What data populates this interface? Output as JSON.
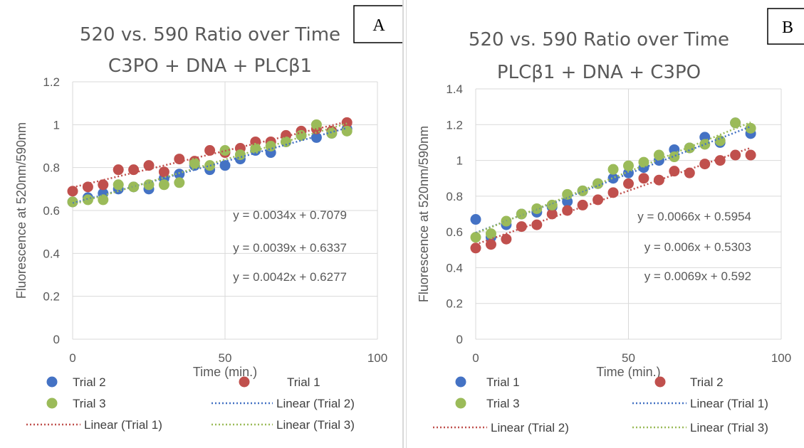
{
  "chart_data": [
    {
      "id": "A",
      "type": "scatter",
      "badge": "A",
      "title": "520 vs. 590 Ratio over Time",
      "subtitle": "C3PO + DNA + PLCβ1",
      "xlabel": "Time (min.)",
      "ylabel": "Fluorescence at 520nm/590nm",
      "xlim": [
        0,
        100
      ],
      "ylim": [
        0,
        1.2
      ],
      "xticks": [
        0,
        50,
        100
      ],
      "yticks": [
        0,
        0.2,
        0.4,
        0.6,
        0.8,
        1,
        1.2
      ],
      "ytick_labels": [
        "0",
        "0.2",
        "0.4",
        "0.6",
        "0.8",
        "1",
        "1.2"
      ],
      "grid": true,
      "series": [
        {
          "name": "Trial 2",
          "color": "#4472c4",
          "x": [
            0,
            5,
            10,
            15,
            20,
            25,
            30,
            35,
            40,
            45,
            50,
            55,
            60,
            65,
            70,
            75,
            80,
            85,
            90
          ],
          "y": [
            0.64,
            0.66,
            0.68,
            0.7,
            0.71,
            0.7,
            0.75,
            0.77,
            0.81,
            0.79,
            0.81,
            0.84,
            0.88,
            0.87,
            0.92,
            0.95,
            0.94,
            0.96,
            0.98
          ]
        },
        {
          "name": "Trial 1",
          "color": "#c0504d",
          "x": [
            0,
            5,
            10,
            15,
            20,
            25,
            30,
            35,
            40,
            45,
            50,
            55,
            60,
            65,
            70,
            75,
            80,
            85,
            90
          ],
          "y": [
            0.69,
            0.71,
            0.72,
            0.79,
            0.79,
            0.81,
            0.78,
            0.84,
            0.83,
            0.88,
            0.87,
            0.89,
            0.92,
            0.92,
            0.95,
            0.97,
            0.98,
            0.97,
            1.01
          ]
        },
        {
          "name": "Trial 3",
          "color": "#9bbb59",
          "x": [
            0,
            5,
            10,
            15,
            20,
            25,
            30,
            35,
            40,
            45,
            50,
            55,
            60,
            65,
            70,
            75,
            80,
            85,
            90
          ],
          "y": [
            0.64,
            0.65,
            0.65,
            0.72,
            0.71,
            0.72,
            0.72,
            0.73,
            0.82,
            0.81,
            0.88,
            0.86,
            0.89,
            0.9,
            0.92,
            0.95,
            1.0,
            0.96,
            0.97
          ]
        }
      ],
      "trendlines": [
        {
          "name": "Linear (Trial 2)",
          "color": "#4472c4",
          "slope": 0.0039,
          "intercept": 0.6337
        },
        {
          "name": "Linear (Trial 1)",
          "color": "#c0504d",
          "slope": 0.0034,
          "intercept": 0.7079
        },
        {
          "name": "Linear (Trial 3)",
          "color": "#9bbb59",
          "slope": 0.0042,
          "intercept": 0.6277
        }
      ],
      "equations": [
        "y = 0.0034x + 0.7079",
        "y = 0.0039x + 0.6337",
        "y = 0.0042x + 0.6277"
      ],
      "legend": [
        "Trial 2",
        "Trial 1",
        "Trial 3",
        "Linear (Trial 2)",
        "Linear (Trial 1)",
        "Linear (Trial 3)"
      ]
    },
    {
      "id": "B",
      "type": "scatter",
      "badge": "B",
      "title": "520 vs. 590 Ratio over Time",
      "subtitle": "PLCβ1 + DNA + C3PO",
      "xlabel": "Time (min.)",
      "ylabel": "Fluorescence at 520nm/590nm",
      "xlim": [
        0,
        100
      ],
      "ylim": [
        0,
        1.4
      ],
      "xticks": [
        0,
        50,
        100
      ],
      "yticks": [
        0,
        0.2,
        0.4,
        0.6,
        0.8,
        1,
        1.2,
        1.4
      ],
      "ytick_labels": [
        "0",
        "0.2",
        "0.4",
        "0.6",
        "0.8",
        "1",
        "1.2",
        "1.4"
      ],
      "grid": true,
      "series": [
        {
          "name": "Trial 1",
          "color": "#4472c4",
          "x": [
            0,
            5,
            10,
            15,
            20,
            25,
            30,
            35,
            40,
            45,
            50,
            55,
            60,
            65,
            70,
            75,
            80,
            85,
            90
          ],
          "y": [
            0.67,
            0.57,
            0.64,
            0.7,
            0.71,
            0.74,
            0.77,
            0.83,
            0.87,
            0.9,
            0.93,
            0.96,
            1.0,
            1.06,
            1.07,
            1.13,
            1.1,
            1.21,
            1.15
          ]
        },
        {
          "name": "Trial 2",
          "color": "#c0504d",
          "x": [
            0,
            5,
            10,
            15,
            20,
            25,
            30,
            35,
            40,
            45,
            50,
            55,
            60,
            65,
            70,
            75,
            80,
            85,
            90
          ],
          "y": [
            0.51,
            0.53,
            0.56,
            0.63,
            0.64,
            0.7,
            0.72,
            0.75,
            0.78,
            0.82,
            0.87,
            0.9,
            0.89,
            0.94,
            0.93,
            0.98,
            1.0,
            1.03,
            1.03
          ]
        },
        {
          "name": "Trial 3",
          "color": "#9bbb59",
          "x": [
            0,
            5,
            10,
            15,
            20,
            25,
            30,
            35,
            40,
            45,
            50,
            55,
            60,
            65,
            70,
            75,
            80,
            85,
            90
          ],
          "y": [
            0.57,
            0.59,
            0.66,
            0.7,
            0.73,
            0.75,
            0.81,
            0.83,
            0.87,
            0.95,
            0.97,
            0.99,
            1.03,
            1.02,
            1.07,
            1.09,
            1.11,
            1.21,
            1.18
          ]
        }
      ],
      "trendlines": [
        {
          "name": "Linear (Trial 1)",
          "color": "#4472c4",
          "slope": 0.0066,
          "intercept": 0.5954
        },
        {
          "name": "Linear (Trial 2)",
          "color": "#c0504d",
          "slope": 0.006,
          "intercept": 0.5303
        },
        {
          "name": "Linear (Trial 3)",
          "color": "#9bbb59",
          "slope": 0.0069,
          "intercept": 0.592
        }
      ],
      "equations": [
        "y = 0.0066x + 0.5954",
        "y = 0.006x + 0.5303",
        "y = 0.0069x + 0.592"
      ],
      "legend": [
        "Trial 1",
        "Trial 2",
        "Trial 3",
        "Linear (Trial 1)",
        "Linear (Trial 2)",
        "Linear (Trial 3)"
      ]
    }
  ]
}
